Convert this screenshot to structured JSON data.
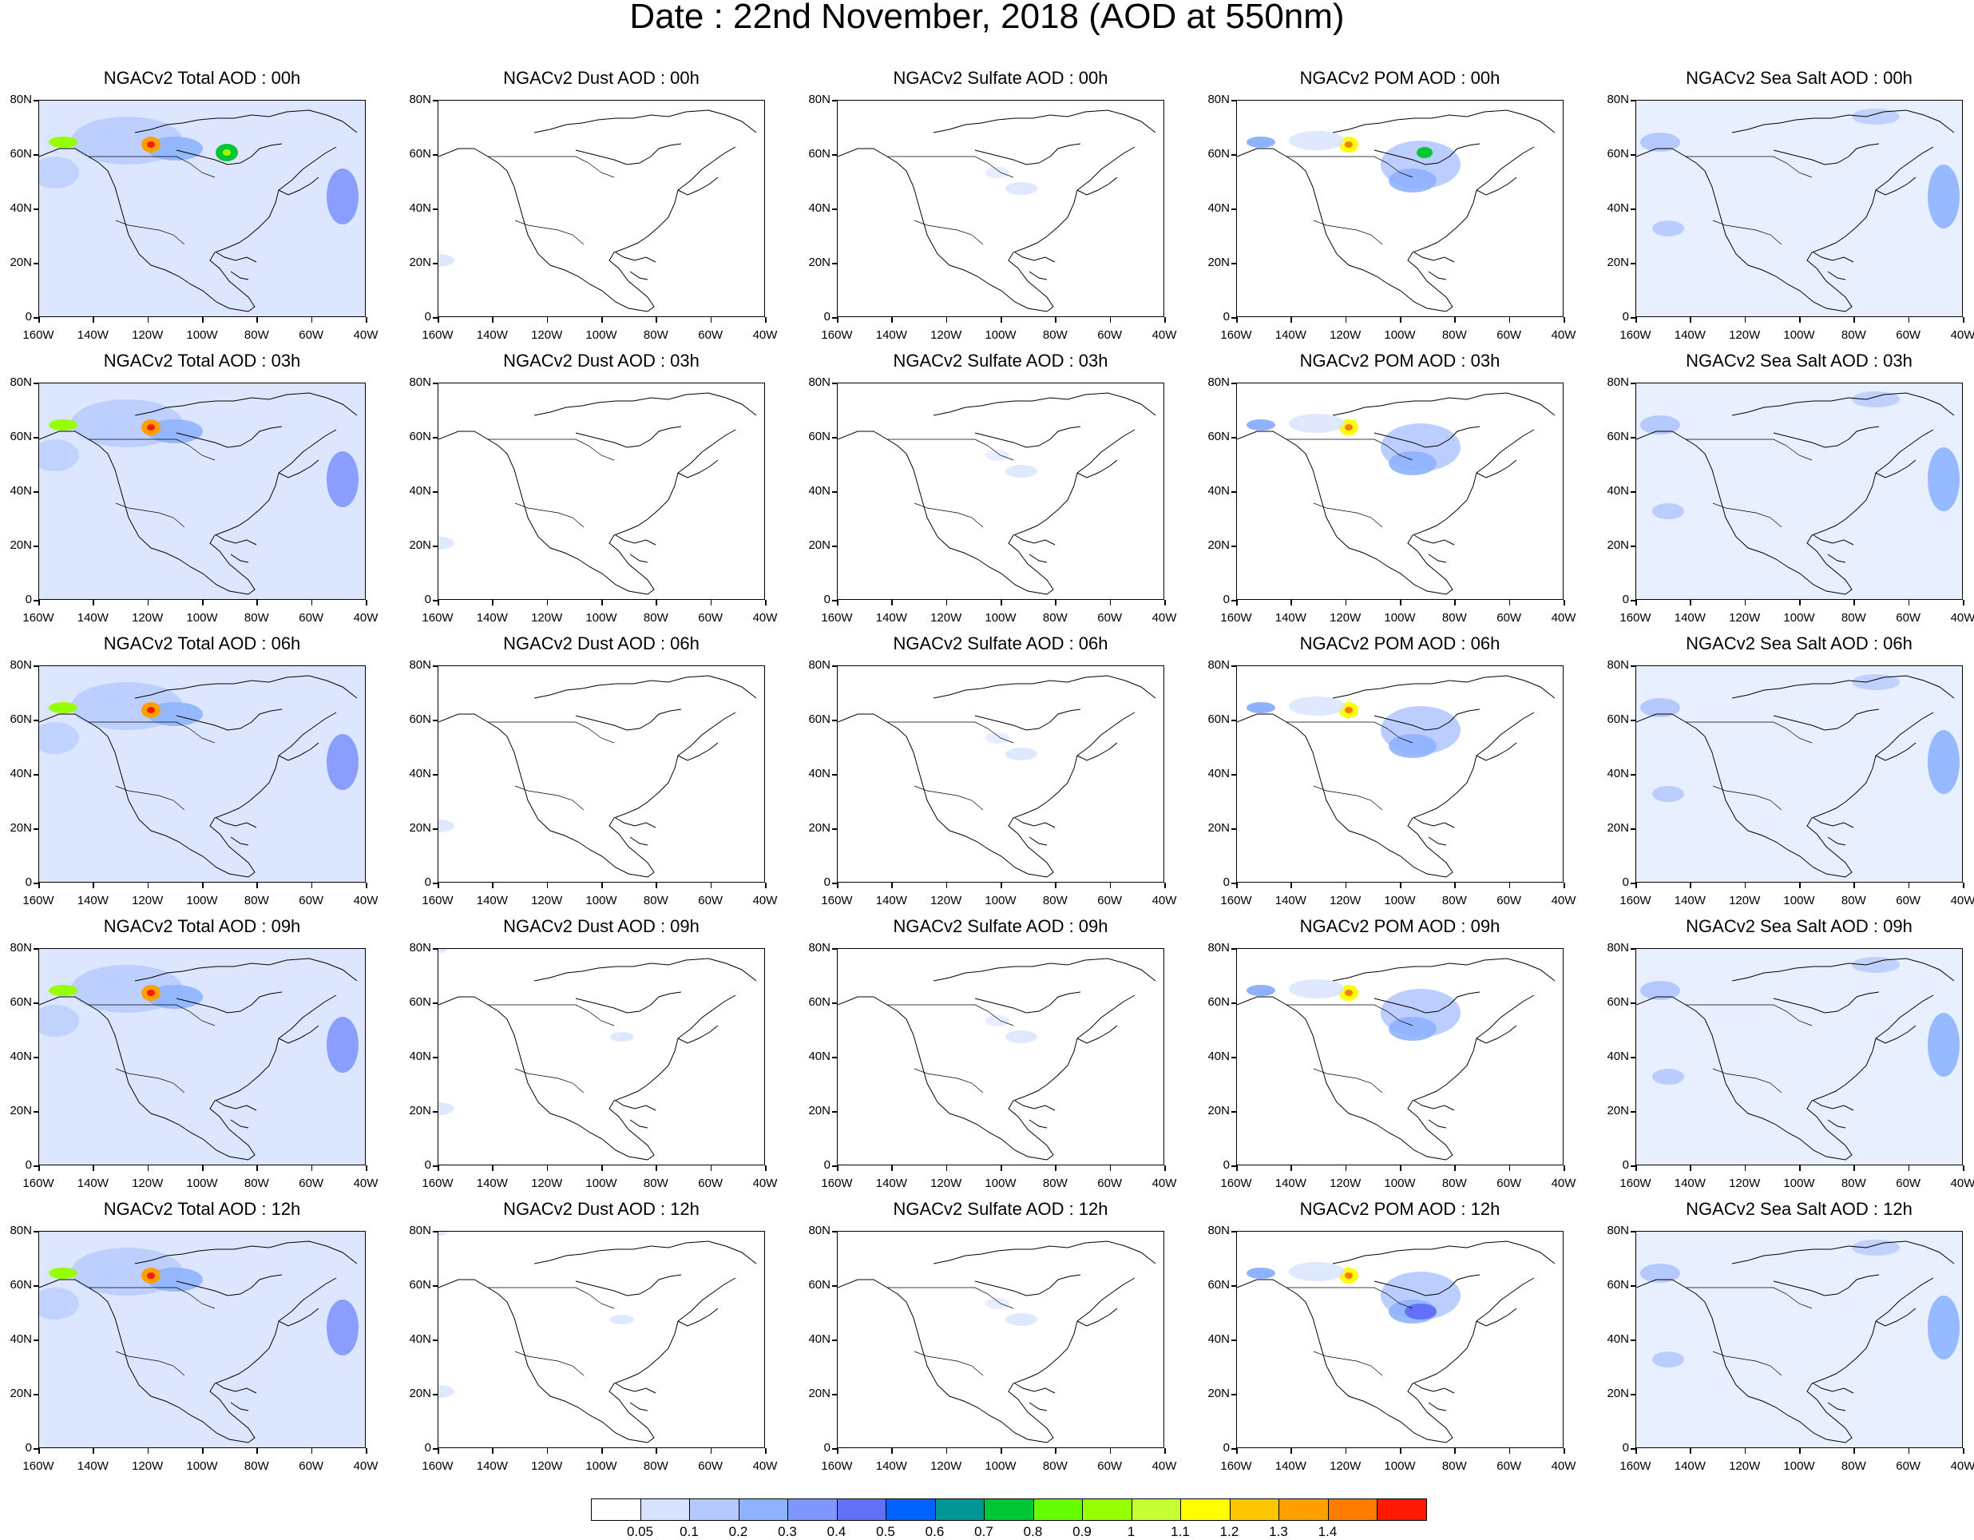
{
  "title": "Date : 22nd November, 2018 (AOD at 550nm)",
  "rows": [
    [
      "NGACv2 Total AOD : 00h",
      "NGACv2 Dust AOD : 00h",
      "NGACv2 Sulfate AOD : 00h",
      "NGACv2 POM AOD : 00h",
      "NGACv2 Sea Salt AOD : 00h"
    ],
    [
      "NGACv2 Total AOD : 03h",
      "NGACv2 Dust AOD : 03h",
      "NGACv2 Sulfate AOD : 03h",
      "NGACv2 POM AOD : 03h",
      "NGACv2 Sea Salt AOD : 03h"
    ],
    [
      "NGACv2 Total AOD : 06h",
      "NGACv2 Dust AOD : 06h",
      "NGACv2 Sulfate AOD : 06h",
      "NGACv2 POM AOD : 06h",
      "NGACv2 Sea Salt AOD : 06h"
    ],
    [
      "NGACv2 Total AOD : 09h",
      "NGACv2 Dust AOD : 09h",
      "NGACv2 Sulfate AOD : 09h",
      "NGACv2 POM AOD : 09h",
      "NGACv2 Sea Salt  AOD : 09h"
    ],
    [
      "NGACv2 Total AOD  : 12h",
      "NGACv2 Dust AOD : 12h",
      "NGACv2 Sulfate AOD : 12h",
      "NGACv2 POM  AOD : 12h",
      "NGACv2 Sea Salt  AOD : 12h"
    ]
  ],
  "y_ticks": [
    "80N",
    "60N",
    "40N",
    "20N",
    "0"
  ],
  "x_ticks": [
    "160W",
    "140W",
    "120W",
    "100W",
    "80W",
    "60W",
    "40W"
  ],
  "colorbar": {
    "levels": [
      "0.05",
      "0.1",
      "0.2",
      "0.3",
      "0.4",
      "0.5",
      "0.6",
      "0.7",
      "0.8",
      "0.9",
      "1",
      "1.1",
      "1.2",
      "1.3",
      "1.4"
    ],
    "colors": [
      "#ffffff",
      "#d6e2ff",
      "#b5c9ff",
      "#8eb2ff",
      "#7f96ff",
      "#6370f8",
      "#0063ff",
      "#009696",
      "#00c633",
      "#63ff00",
      "#96ff00",
      "#c6ff33",
      "#ffff00",
      "#ffc600",
      "#ffa000",
      "#ff7c00",
      "#ff1900"
    ]
  }
}
